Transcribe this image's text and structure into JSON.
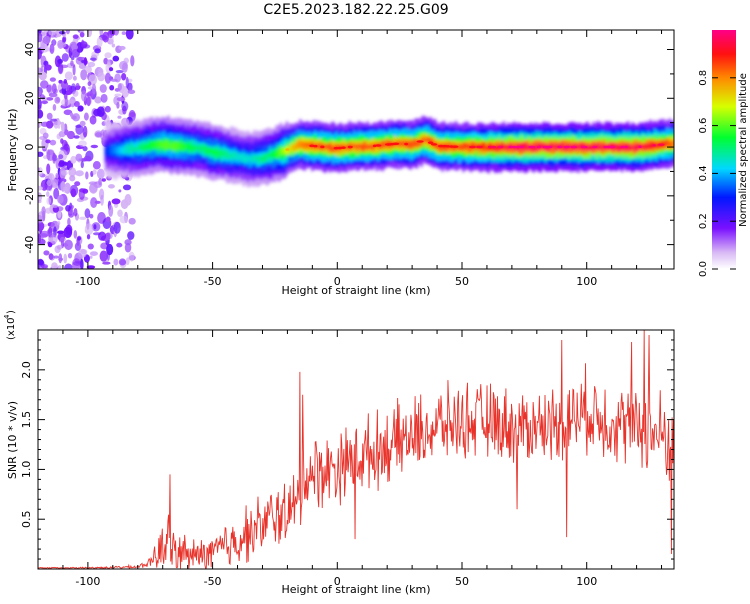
{
  "figure_title": "C2E5.2023.182.22.25.G09",
  "chart_data": [
    {
      "type": "heatmap",
      "xlabel": "Height of straight line (km)",
      "ylabel": "Frequency (Hz)",
      "xlim": [
        -120,
        135
      ],
      "ylim": [
        -50,
        48
      ],
      "x_ticks": [
        -100,
        -50,
        0,
        50,
        100
      ],
      "y_ticks": [
        -40,
        -20,
        0,
        20,
        40
      ],
      "x_tick_labels": [
        "-100",
        "-50",
        "0",
        "50",
        "100"
      ],
      "y_tick_labels": [
        "-40",
        "-20",
        "0",
        "20",
        "40"
      ],
      "colorbar": {
        "label": "Normalized spectral amplitude",
        "range": [
          0,
          1
        ],
        "ticks": [
          0.0,
          0.2,
          0.4,
          0.6,
          0.8
        ],
        "tick_labels": [
          "0.0",
          "0.2",
          "0.4",
          "0.6",
          "0.8"
        ]
      },
      "ridge": {
        "x": [
          -93,
          -85,
          -80,
          -75,
          -70,
          -65,
          -60,
          -55,
          -50,
          -45,
          -40,
          -35,
          -30,
          -25,
          -20,
          -15,
          -10,
          -5,
          0,
          5,
          10,
          15,
          20,
          25,
          30,
          35,
          40,
          50,
          60,
          70,
          80,
          90,
          100,
          110,
          120,
          130,
          135
        ],
        "y": [
          -1.5,
          -1,
          -0.5,
          0.5,
          1,
          0.5,
          0,
          -0.5,
          -2,
          -3,
          -4,
          -5,
          -4.5,
          -3,
          -1,
          1,
          0.5,
          0,
          -0.5,
          0,
          0.3,
          0.5,
          1,
          1.5,
          1,
          3,
          0.5,
          0,
          0,
          0,
          0,
          0,
          0,
          0,
          0,
          1,
          1.5
        ],
        "amplitude": [
          0.3,
          0.45,
          0.5,
          0.55,
          0.6,
          0.6,
          0.55,
          0.5,
          0.55,
          0.5,
          0.45,
          0.45,
          0.5,
          0.55,
          0.7,
          0.8,
          0.85,
          0.85,
          0.85,
          0.85,
          0.85,
          0.85,
          0.85,
          0.85,
          0.85,
          0.85,
          0.85,
          0.85,
          0.9,
          0.95,
          0.95,
          0.95,
          0.95,
          0.95,
          0.95,
          0.9,
          0.8
        ]
      }
    },
    {
      "type": "line",
      "xlabel": "Height of straight line (km)",
      "ylabel": "SNR (10 * v/v)",
      "y_scale_note": "(x10^4)",
      "xlim": [
        -120,
        135
      ],
      "ylim": [
        0,
        2.4
      ],
      "x_ticks": [
        -100,
        -50,
        0,
        50,
        100
      ],
      "y_ticks": [
        0.5,
        1.0,
        1.5,
        2.0
      ],
      "x_tick_labels": [
        "-100",
        "-50",
        "0",
        "50",
        "100"
      ],
      "y_tick_labels": [
        "0.5",
        "1.0",
        "1.5",
        "2.0"
      ],
      "series": [
        {
          "color": "#e8332b",
          "envelope_x": [
            -120,
            -100,
            -80,
            -75,
            -72,
            -70,
            -68,
            -65,
            -60,
            -55,
            -50,
            -45,
            -40,
            -35,
            -30,
            -25,
            -20,
            -16,
            -15,
            -14,
            -10,
            -5,
            0,
            5,
            10,
            15,
            20,
            25,
            30,
            40,
            50,
            60,
            70,
            80,
            90,
            95,
            100,
            110,
            120,
            125,
            130,
            135
          ],
          "envelope_base": [
            0.01,
            0.01,
            0.02,
            0.06,
            0.12,
            0.2,
            0.22,
            0.15,
            0.12,
            0.12,
            0.14,
            0.2,
            0.28,
            0.35,
            0.42,
            0.5,
            0.55,
            0.6,
            0.7,
            0.9,
            0.95,
            0.95,
            1.0,
            1.05,
            1.1,
            1.15,
            1.2,
            1.25,
            1.3,
            1.4,
            1.45,
            1.45,
            1.4,
            1.4,
            1.45,
            1.5,
            1.55,
            1.45,
            1.4,
            1.35,
            1.3,
            1.2
          ],
          "envelope_noise": [
            0.01,
            0.01,
            0.02,
            0.05,
            0.25,
            0.45,
            0.4,
            0.3,
            0.2,
            0.2,
            0.25,
            0.3,
            0.35,
            0.35,
            0.35,
            0.4,
            0.4,
            0.4,
            0.5,
            0.5,
            0.45,
            0.45,
            0.45,
            0.45,
            0.45,
            0.45,
            0.45,
            0.45,
            0.45,
            0.45,
            0.45,
            0.45,
            0.45,
            0.45,
            0.45,
            0.5,
            0.5,
            0.5,
            0.5,
            0.55,
            0.55,
            0.5
          ],
          "peaks": [
            {
              "x": -67,
              "y": 0.95
            },
            {
              "x": -15,
              "y": 1.98
            },
            {
              "x": -14,
              "y": 1.75
            },
            {
              "x": 90,
              "y": 2.3
            },
            {
              "x": 118,
              "y": 2.28
            },
            {
              "x": 123,
              "y": 2.4
            },
            {
              "x": 125,
              "y": 2.35
            },
            {
              "x": 134,
              "y": 2.25
            }
          ],
          "dips": [
            {
              "x": 92,
              "y": 0.32
            },
            {
              "x": 134,
              "y": 0.15
            },
            {
              "x": 7,
              "y": 0.3
            },
            {
              "x": 72,
              "y": 0.6
            }
          ]
        }
      ]
    }
  ]
}
